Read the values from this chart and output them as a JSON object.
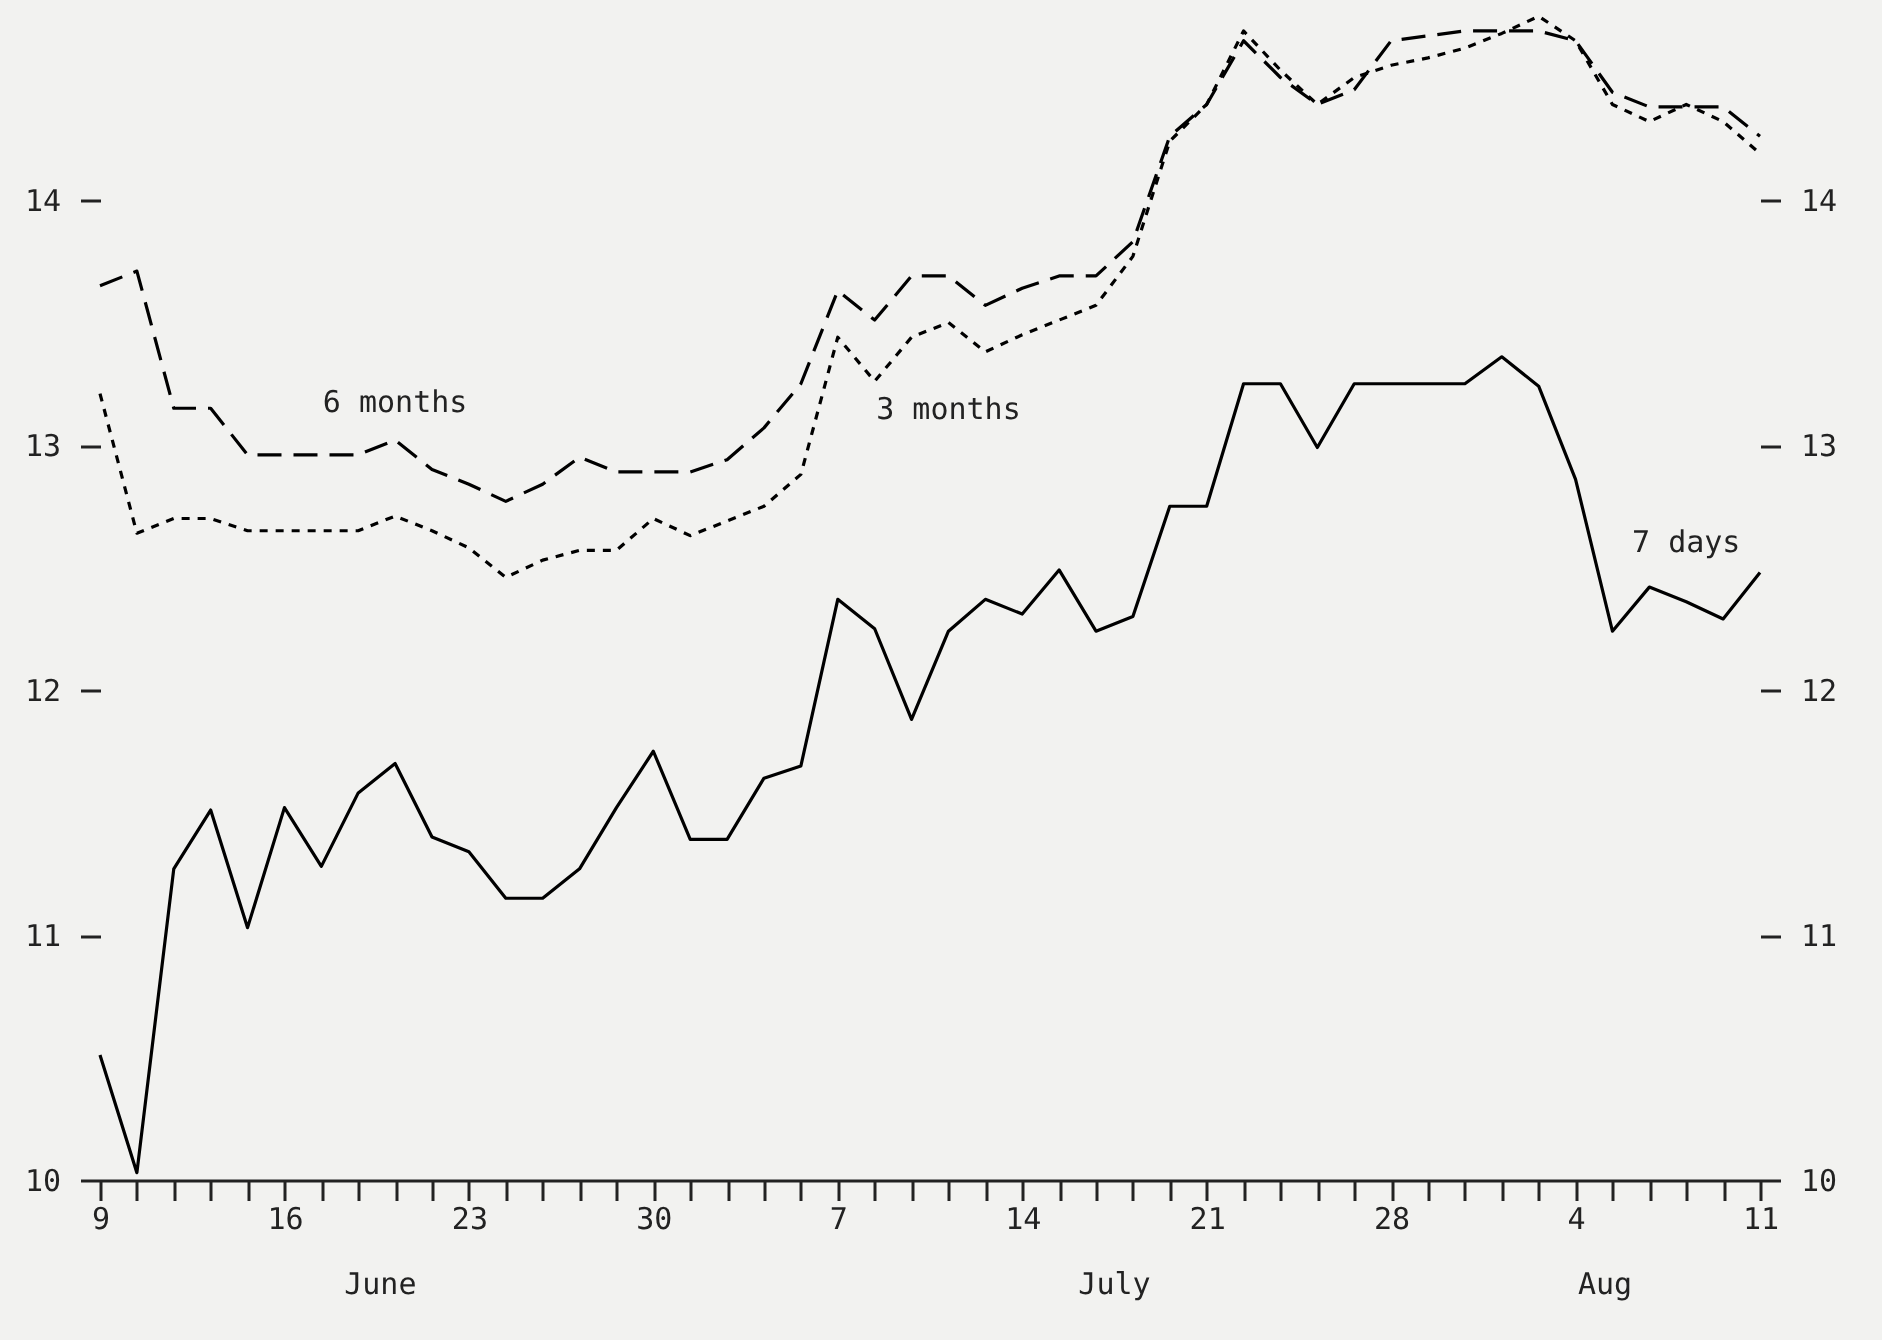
{
  "chart_data": {
    "type": "line",
    "categories": [
      "9",
      null,
      null,
      null,
      null,
      "16",
      null,
      null,
      null,
      null,
      "23",
      null,
      null,
      null,
      null,
      "30",
      null,
      null,
      null,
      null,
      "7",
      null,
      null,
      null,
      null,
      "14",
      null,
      null,
      null,
      null,
      "21",
      null,
      null,
      null,
      null,
      "28",
      null,
      null,
      null,
      null,
      "4",
      null,
      null,
      null,
      null,
      "11"
    ],
    "series": [
      {
        "name": "6 months",
        "color": "#000000",
        "line_style": "dashed",
        "values": [
          13.65,
          13.71,
          13.15,
          13.15,
          12.96,
          12.96,
          12.96,
          12.96,
          13.02,
          12.9,
          12.84,
          12.77,
          12.84,
          12.95,
          12.89,
          12.89,
          12.89,
          12.94,
          13.07,
          13.25,
          13.63,
          13.51,
          13.69,
          13.69,
          13.57,
          13.64,
          13.69,
          13.69,
          13.83,
          14.26,
          14.39,
          14.65,
          14.5,
          14.39,
          14.45,
          14.65,
          14.67,
          14.69,
          14.69,
          14.69,
          14.65,
          14.44,
          14.38,
          14.38,
          14.38,
          14.26
        ]
      },
      {
        "name": "3 months",
        "color": "#000000",
        "line_style": "dotted",
        "values": [
          13.21,
          12.64,
          12.7,
          12.7,
          12.65,
          12.65,
          12.65,
          12.65,
          12.71,
          12.65,
          12.58,
          12.46,
          12.53,
          12.57,
          12.57,
          12.7,
          12.63,
          12.69,
          12.75,
          12.88,
          13.44,
          13.26,
          13.44,
          13.5,
          13.38,
          13.45,
          13.51,
          13.57,
          13.77,
          14.24,
          14.39,
          14.69,
          14.53,
          14.39,
          14.5,
          14.55,
          14.58,
          14.62,
          14.68,
          14.75,
          14.65,
          14.39,
          14.32,
          14.39,
          14.32,
          14.19
        ]
      },
      {
        "name": "7 days",
        "color": "#000000",
        "line_style": "solid",
        "values": [
          10.51,
          10.03,
          11.27,
          11.51,
          11.03,
          11.52,
          11.28,
          11.58,
          11.7,
          11.4,
          11.34,
          11.15,
          11.15,
          11.27,
          11.52,
          11.75,
          11.39,
          11.39,
          11.64,
          11.69,
          12.37,
          12.25,
          11.88,
          12.24,
          12.37,
          12.31,
          12.49,
          12.24,
          12.3,
          12.75,
          12.75,
          13.25,
          13.25,
          12.99,
          13.25,
          13.25,
          13.25,
          13.25,
          13.36,
          13.24,
          12.86,
          12.24,
          12.42,
          12.36,
          12.29,
          12.48
        ]
      }
    ],
    "ylim": [
      10,
      14.8
    ],
    "yticks": [
      10,
      11,
      12,
      13,
      14
    ],
    "y2lim": [
      10,
      14.8
    ],
    "y2ticks": [
      10,
      11,
      12,
      13,
      14
    ],
    "annotations": [
      "June",
      "July",
      "Aug"
    ],
    "grid": false
  }
}
